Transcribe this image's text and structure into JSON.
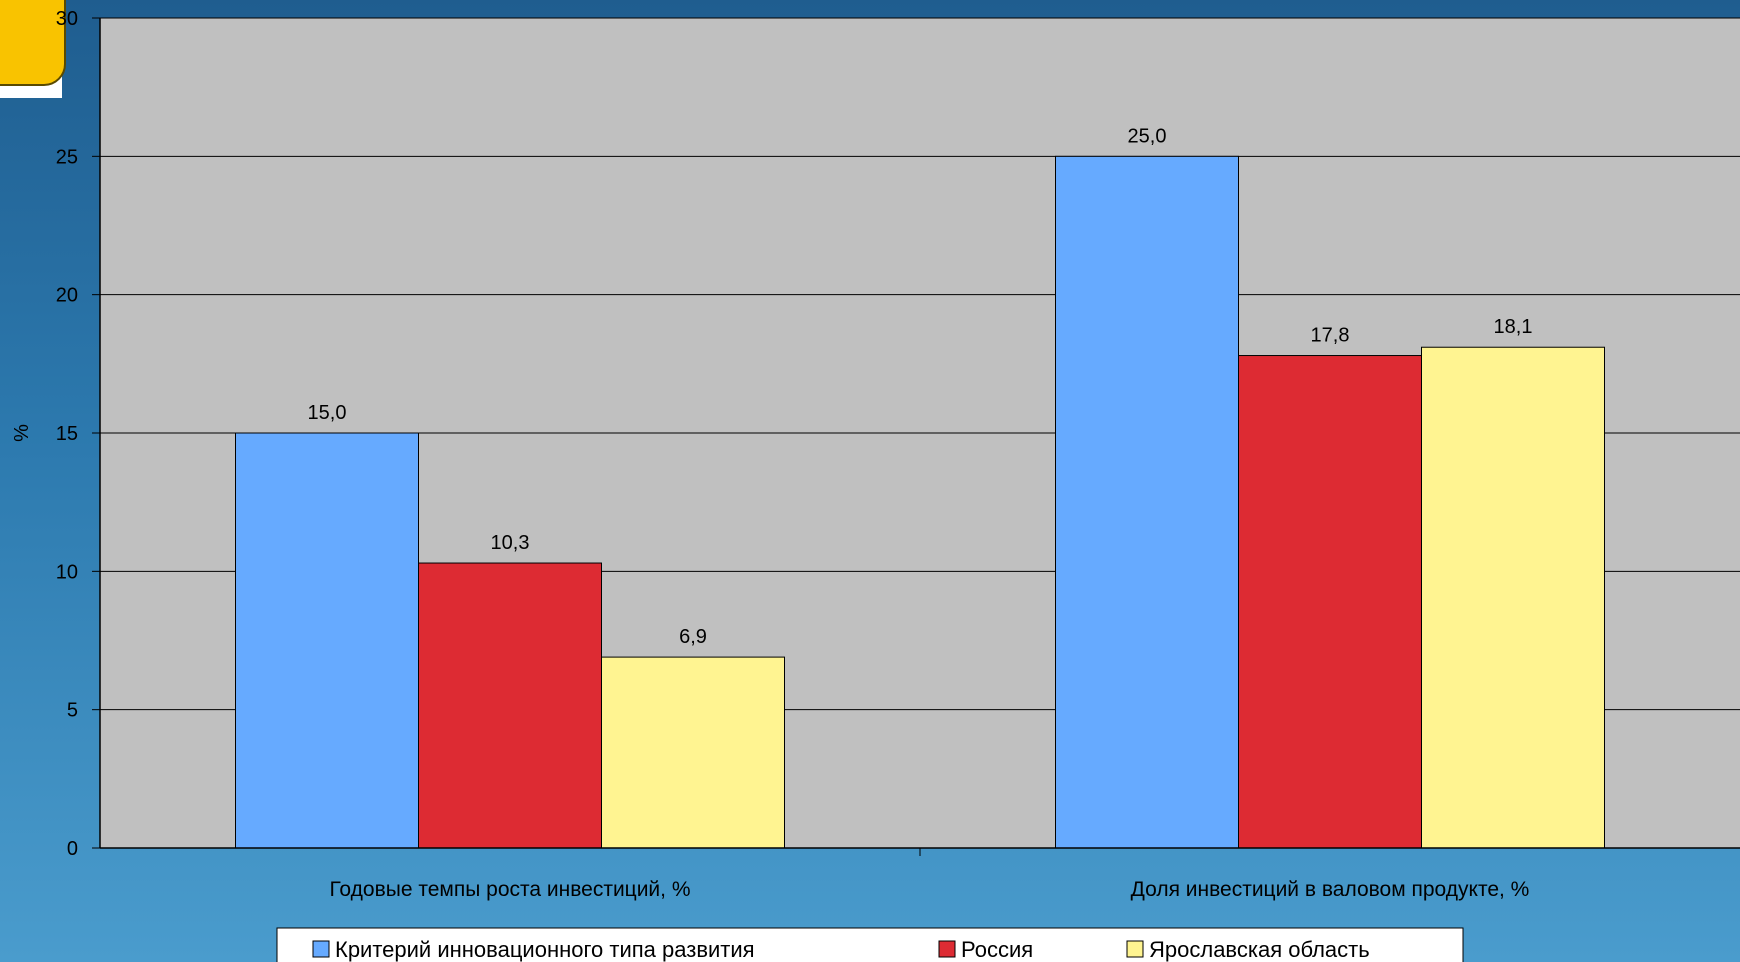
{
  "chart_data": {
    "type": "bar",
    "title": "",
    "xlabel": "",
    "ylabel": "%",
    "ylim": [
      0,
      30
    ],
    "yticks": [
      0,
      5,
      10,
      15,
      20,
      25,
      30
    ],
    "grid": true,
    "legend_position": "bottom",
    "categories": [
      "Годовые темпы роста инвестиций, %",
      "Доля инвестиций в валовом продукте, %"
    ],
    "series": [
      {
        "name": "Критерий инновационного типа развития",
        "values": [
          15.0,
          25.0
        ],
        "labels": [
          "15,0",
          "25,0"
        ],
        "color": "#66aaff"
      },
      {
        "name": "Россия",
        "values": [
          10.3,
          17.8
        ],
        "labels": [
          "10,3",
          "17,8"
        ],
        "color": "#dd2b33"
      },
      {
        "name": "Ярославская область",
        "values": [
          6.9,
          18.1
        ],
        "labels": [
          "6,9",
          "18,1"
        ],
        "color": "#fff491"
      }
    ]
  },
  "colors": {
    "plot_background": "#c0c0c0",
    "gridline": "#000000",
    "badge": "#f9c300"
  }
}
